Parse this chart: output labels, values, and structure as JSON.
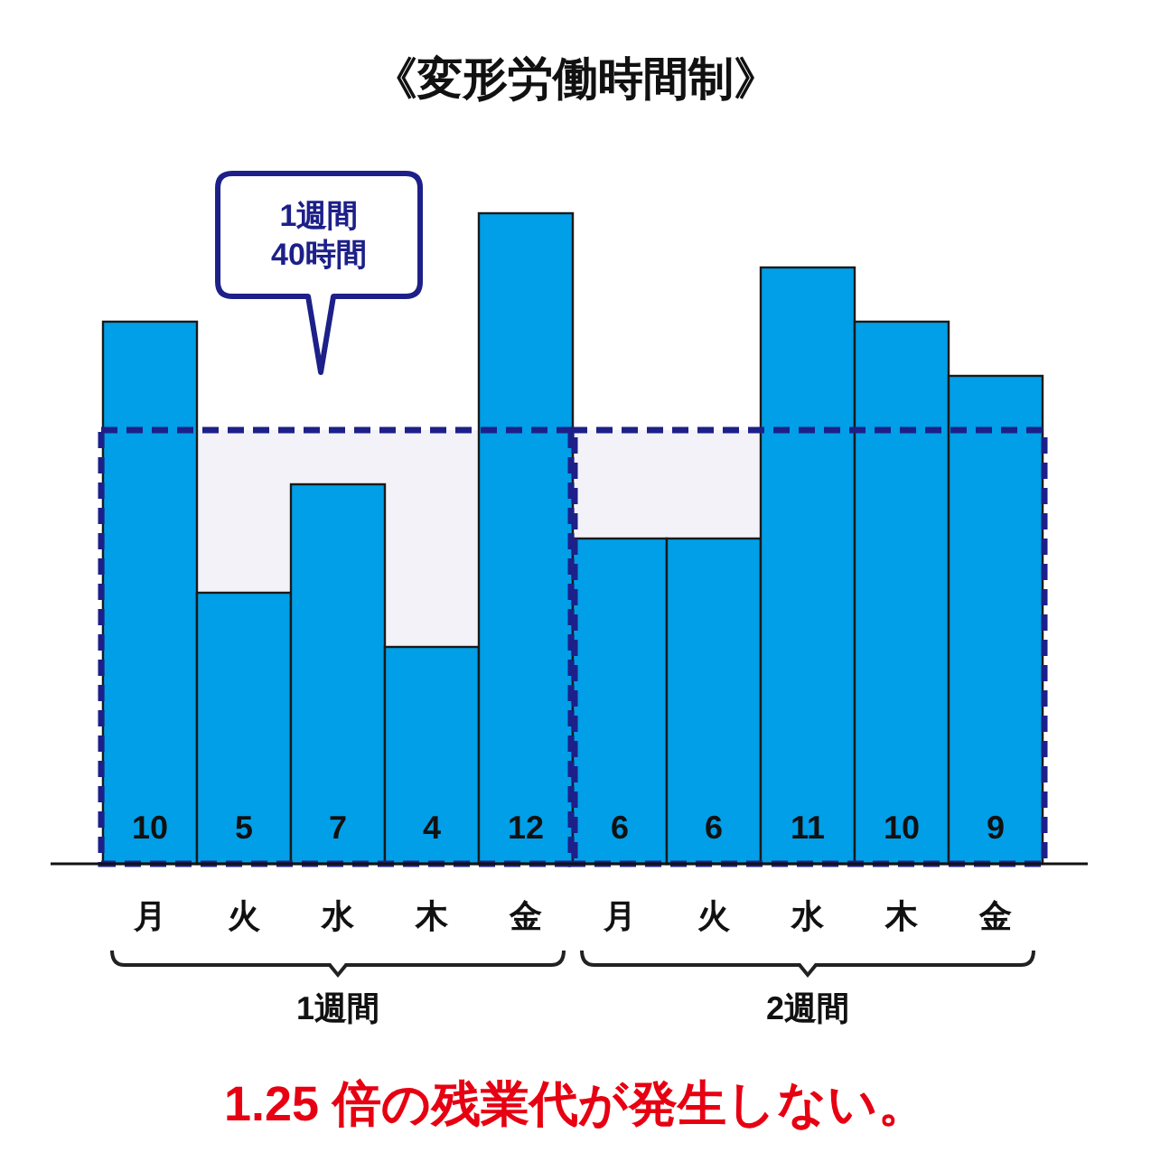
{
  "chart_data": {
    "type": "bar",
    "title": "《変形労働時間制》",
    "categories": [
      "月",
      "火",
      "水",
      "木",
      "金",
      "月",
      "火",
      "水",
      "木",
      "金"
    ],
    "values": [
      10,
      5,
      7,
      4,
      12,
      6,
      6,
      11,
      10,
      9
    ],
    "color": "#009fe8",
    "data_labels": true,
    "bands": [
      {
        "axis": "y",
        "from": 0,
        "to": 8,
        "label": "1週間\n40時間",
        "color": "#1d2088"
      },
      {
        "axis": "y",
        "from": 0,
        "to": 8,
        "color": "#1d2088"
      }
    ],
    "annotations": [
      "1週間",
      "2週間",
      "1.25 倍の残業代が発生しない。"
    ]
  }
}
